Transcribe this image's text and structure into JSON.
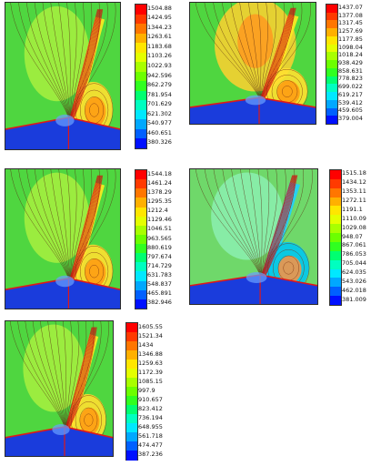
{
  "chart_data": [
    {
      "type": "heatmap",
      "colorscale_levels": [
        "1504.88",
        "1424.95",
        "1344.23",
        "1263.61",
        "1183.68",
        "1103.26",
        "1022.93",
        "942.596",
        "862.279",
        "781.954",
        "701.629",
        "621.302",
        "540.977",
        "460.651",
        "380.326"
      ],
      "style": "warm"
    },
    {
      "type": "heatmap",
      "colorscale_levels": [
        "1437.07",
        "1377.08",
        "1317.45",
        "1257.69",
        "1177.85",
        "1098.04",
        "1018.24",
        "938.429",
        "858.631",
        "778.823",
        "699.022",
        "619.217",
        "539.412",
        "459.605",
        "379.004"
      ],
      "style": "warm-wide"
    },
    {
      "type": "heatmap",
      "colorscale_levels": [
        "1544.18",
        "1461.24",
        "1378.29",
        "1295.35",
        "1212.4",
        "1129.46",
        "1046.51",
        "963.565",
        "880.619",
        "797.674",
        "714.729",
        "631.783",
        "548.837",
        "465.891",
        "382.946"
      ],
      "style": "warm"
    },
    {
      "type": "heatmap",
      "colorscale_levels": [
        "1515.18",
        "1434.12",
        "1353.11",
        "1272.11",
        "1191.1",
        "1110.09",
        "1029.08",
        "948.07",
        "867.061",
        "786.053",
        "705.044",
        "624.035",
        "543.026",
        "462.018",
        "381.009"
      ],
      "style": "cool"
    },
    {
      "type": "heatmap",
      "colorscale_levels": [
        "1605.55",
        "1521.34",
        "1434",
        "1346.88",
        "1259.63",
        "1172.39",
        "1085.15",
        "997.9",
        "910.657",
        "823.412",
        "736.194",
        "648.955",
        "561.718",
        "474.477",
        "387.236"
      ],
      "style": "warm"
    }
  ],
  "colors": {
    "scale": [
      "#ff0000",
      "#ff3a00",
      "#ff7600",
      "#ffb000",
      "#ffe600",
      "#e4ff00",
      "#a8ff00",
      "#6cff00",
      "#30ff20",
      "#00ff70",
      "#00ffc0",
      "#00e8ff",
      "#00a8ff",
      "#0060ff",
      "#0010ff"
    ]
  }
}
